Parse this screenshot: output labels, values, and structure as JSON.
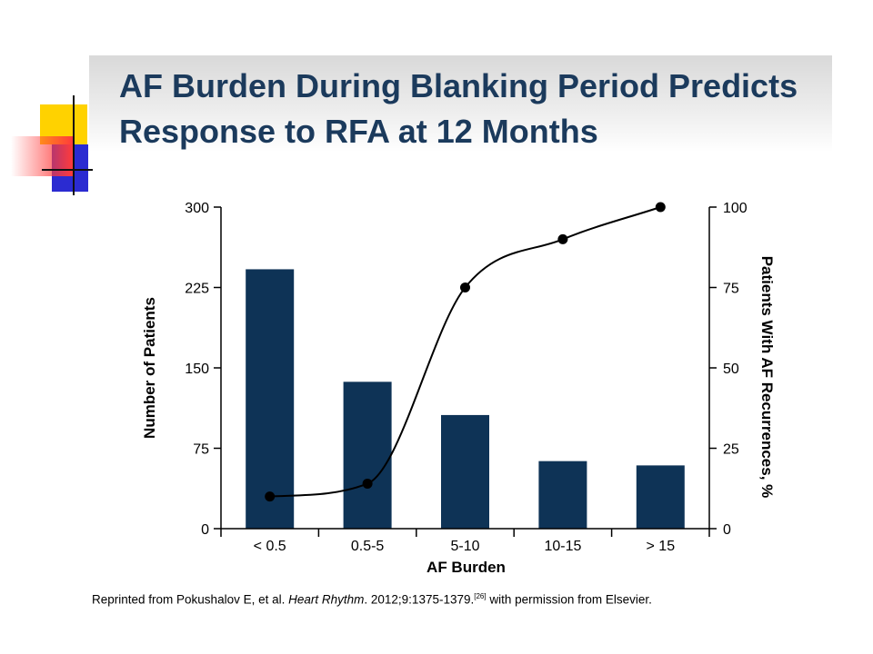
{
  "slide": {
    "title": "AF Burden During Blanking Period Predicts Response to RFA at 12 Months",
    "citation": {
      "prefix": "Reprinted from Pokushalov E, et al. ",
      "journal": "Heart Rhythm",
      "suffix": ". 2012;9:1375-1379.",
      "ref": "[26]",
      "end": " with permission from Elsevier."
    }
  },
  "colors": {
    "bar": "#0e3356",
    "title": "#1b3a5c",
    "deco_yellow": "#ffd200",
    "deco_blue": "#2b2bd1",
    "deco_red": "#ff3b3b"
  },
  "chart_data": {
    "type": "bar",
    "categories": [
      "< 0.5",
      "0.5-5",
      "5-10",
      "10-15",
      "> 15"
    ],
    "xlabel": "AF Burden",
    "ylabel": "Number of Patients",
    "ylim": [
      0,
      300
    ],
    "yticks": [
      0,
      75,
      150,
      225,
      300
    ],
    "series": [
      {
        "type": "bar",
        "axis": "left",
        "values": [
          242,
          137,
          106,
          63,
          59
        ]
      },
      {
        "type": "line",
        "axis": "right",
        "smooth": true,
        "markers": true,
        "values": [
          10,
          14,
          75,
          90,
          100
        ]
      }
    ],
    "y2label": "Patients With AF Recurrences, %",
    "y2lim": [
      0,
      100
    ],
    "y2ticks": [
      0,
      25,
      50,
      75,
      100
    ],
    "grid": false,
    "legend": "none"
  }
}
